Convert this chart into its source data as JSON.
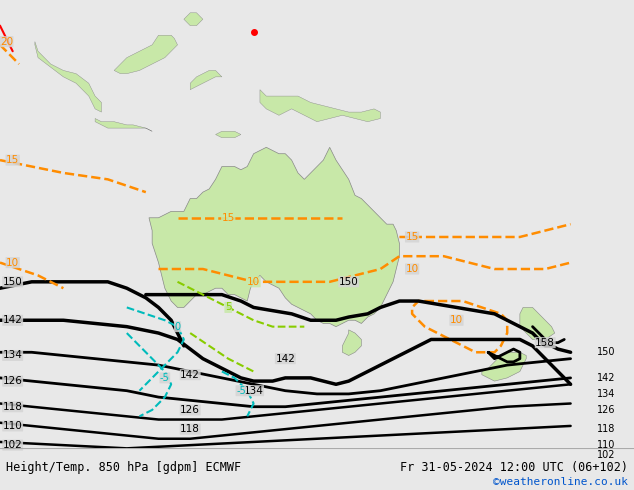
{
  "title_left": "Height/Temp. 850 hPa [gdpm] ECMWF",
  "title_right": "Fr 31-05-2024 12:00 UTC (06+102)",
  "credit": "©weatheronline.co.uk",
  "ocean_color": "#d4d4d4",
  "land_color": "#c8e8a8",
  "land_edge_color": "#888888",
  "bottom_bar_color": "#e8e8e8",
  "text_color_black": "#000000",
  "text_color_blue": "#0055cc",
  "figsize": [
    6.34,
    4.9
  ],
  "dpi": 100,
  "lon_min": 90,
  "lon_max": 190,
  "lat_min": -58,
  "lat_max": 12
}
